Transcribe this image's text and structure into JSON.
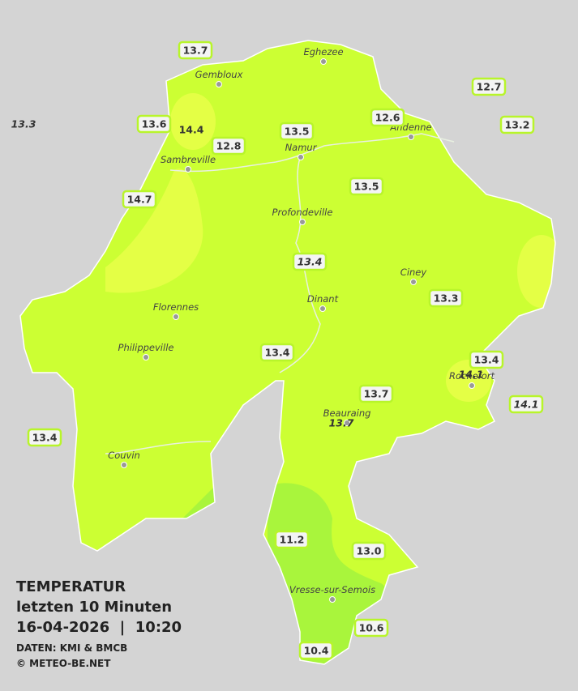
{
  "title": "TEMPERATUR",
  "subtitle": "letzten 10 Minuten",
  "timestamp": "16-04-2026  |  10:20",
  "source": "DATEN: KMI & BMCB",
  "copyright": "© METEO-BE.NET",
  "towns": [
    "Eghezee",
    "Gembloux",
    "Andenne",
    "Namur",
    "Sambreville",
    "Profondeville",
    "Ciney",
    "Dinant",
    "Florennes",
    "Philippeville",
    "Rochefort",
    "Beauraing",
    "Couvin",
    "Vresse-sur-Semois"
  ],
  "stations": [
    {
      "value": "13.7",
      "italic": false,
      "box": true
    },
    {
      "value": "12.7",
      "italic": false,
      "box": true
    },
    {
      "value": "13.3",
      "italic": true,
      "box": false
    },
    {
      "value": "13.6",
      "italic": false,
      "box": true
    },
    {
      "value": "14.4",
      "italic": false,
      "box": false
    },
    {
      "value": "12.6",
      "italic": false,
      "box": true
    },
    {
      "value": "13.2",
      "italic": false,
      "box": true
    },
    {
      "value": "13.5",
      "italic": false,
      "box": true
    },
    {
      "value": "12.8",
      "italic": false,
      "box": true
    },
    {
      "value": "14.7",
      "italic": false,
      "box": true
    },
    {
      "value": "13.5",
      "italic": false,
      "box": true
    },
    {
      "value": "13.4",
      "italic": true,
      "box": true
    },
    {
      "value": "13.3",
      "italic": false,
      "box": true
    },
    {
      "value": "13.4",
      "italic": false,
      "box": true
    },
    {
      "value": "13.4",
      "italic": false,
      "box": true
    },
    {
      "value": "14.1",
      "italic": true,
      "box": false
    },
    {
      "value": "13.7",
      "italic": false,
      "box": true
    },
    {
      "value": "14.1",
      "italic": true,
      "box": true
    },
    {
      "value": "13.7",
      "italic": true,
      "box": false
    },
    {
      "value": "13.4",
      "italic": false,
      "box": true
    },
    {
      "value": "11.2",
      "italic": false,
      "box": true
    },
    {
      "value": "13.0",
      "italic": false,
      "box": true
    },
    {
      "value": "10.6",
      "italic": false,
      "box": true
    },
    {
      "value": "10.4",
      "italic": false,
      "box": true
    }
  ]
}
